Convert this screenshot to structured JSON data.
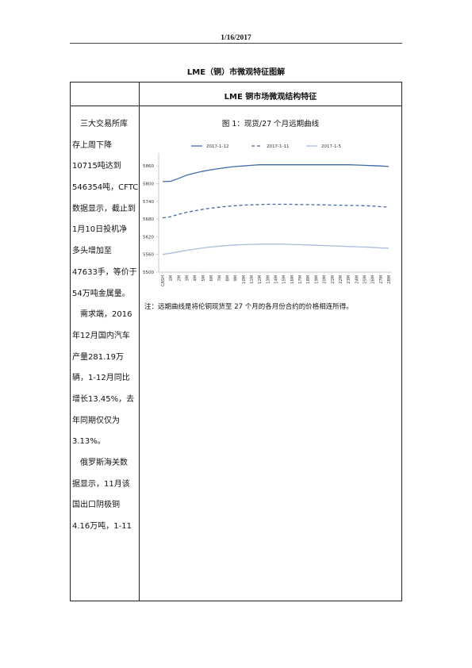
{
  "header": {
    "date": "1/16/2017"
  },
  "document": {
    "title": "LME（铜）市微观特征图解",
    "section_title": "LME 铜市场微观结构特征",
    "left_lines": [
      {
        "text": "三大交易所库",
        "indent": true
      },
      {
        "text": "存上周下降",
        "indent": false
      },
      {
        "text": "10715吨达到",
        "indent": false
      },
      {
        "text": "546354吨，CFTC",
        "indent": false
      },
      {
        "text": "数据显示，截止到",
        "indent": false
      },
      {
        "text": "1月10日投机净",
        "indent": false
      },
      {
        "text": "多头增加至",
        "indent": false
      },
      {
        "text": "47633手，等价于",
        "indent": false
      },
      {
        "text": "54万吨金属量。",
        "indent": false
      },
      {
        "text": "需求端，2016",
        "indent": true
      },
      {
        "text": "年12月国内汽车",
        "indent": false
      },
      {
        "text": "产量281.19万",
        "indent": false
      },
      {
        "text": "辆，1-12月同比",
        "indent": false
      },
      {
        "text": "增长13.45%，去",
        "indent": false
      },
      {
        "text": "年同期仅仅为",
        "indent": false
      },
      {
        "text": "3.13%。",
        "indent": false
      },
      {
        "text": "俄罗斯海关数",
        "indent": true
      },
      {
        "text": "据显示，11月该",
        "indent": false
      },
      {
        "text": "国出口阴极铜",
        "indent": false
      },
      {
        "text": "4.16万吨，1-11",
        "indent": false
      }
    ],
    "figure_title": "图 1：现货/27 个月远期曲线",
    "note": "注：远期曲线是将伦铜现货至 27 个月的各月份合约的价格相连所得。"
  },
  "chart_data": {
    "type": "line",
    "categories": [
      "CASH",
      "1M",
      "2M",
      "3M",
      "4M",
      "5M",
      "6M",
      "7M",
      "8M",
      "9M",
      "10M",
      "11M",
      "12M",
      "13M",
      "14M",
      "15M",
      "16M",
      "17M",
      "18M",
      "19M",
      "20M",
      "21M",
      "22M",
      "23M",
      "24M",
      "25M",
      "26M",
      "27M",
      "28M"
    ],
    "ylim": [
      5500,
      5890
    ],
    "yticks": [
      5500,
      5560,
      5620,
      5680,
      5740,
      5800,
      5860
    ],
    "series": [
      {
        "name": "2017-1-12",
        "style": "solid",
        "color": "#3e6aa6",
        "values": [
          5807,
          5808,
          5818,
          5829,
          5836,
          5842,
          5847,
          5851,
          5855,
          5858,
          5860,
          5862,
          5864,
          5864,
          5864,
          5864,
          5864,
          5864,
          5864,
          5864,
          5864,
          5864,
          5864,
          5864,
          5863,
          5862,
          5861,
          5860,
          5858
        ]
      },
      {
        "name": "2017-1-11",
        "style": "dashed",
        "color": "#3e6aa6",
        "values": [
          5684,
          5688,
          5696,
          5703,
          5708,
          5713,
          5717,
          5720,
          5723,
          5725,
          5727,
          5728,
          5729,
          5730,
          5730,
          5730,
          5730,
          5729,
          5729,
          5728,
          5728,
          5727,
          5727,
          5726,
          5726,
          5725,
          5724,
          5722,
          5720
        ]
      },
      {
        "name": "2017-1-5",
        "style": "solid",
        "color": "#a8bcdb",
        "values": [
          5560,
          5564,
          5569,
          5574,
          5578,
          5582,
          5585,
          5588,
          5590,
          5592,
          5593,
          5594,
          5595,
          5595,
          5595,
          5595,
          5594,
          5593,
          5592,
          5591,
          5590,
          5589,
          5588,
          5587,
          5586,
          5585,
          5584,
          5582,
          5581
        ]
      }
    ],
    "legend_position": "top",
    "grid": false
  }
}
